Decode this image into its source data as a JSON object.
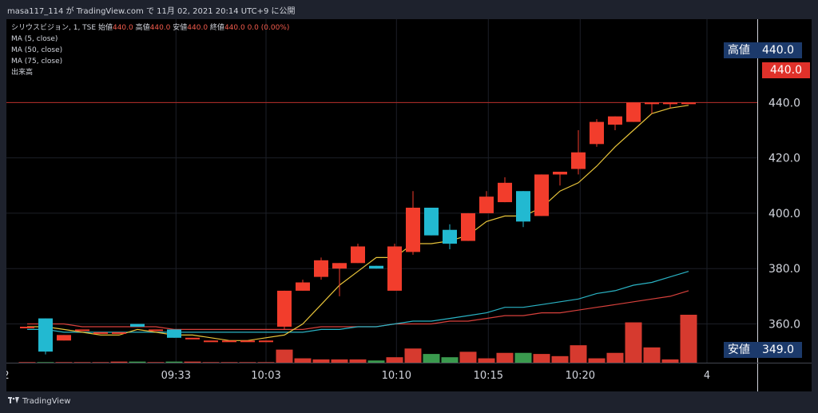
{
  "header": {
    "caption": "masa117_114 が TradingView.com で 11月 02, 2021 20:14 UTC+9 に公開"
  },
  "legend": {
    "symbol": "シリウスビジョン, 1, TSE",
    "ohlc": [
      {
        "label": "始値",
        "value": "440.0"
      },
      {
        "label": "高値",
        "value": "440.0"
      },
      {
        "label": "安値",
        "value": "440.0"
      },
      {
        "label": "終値",
        "value": "440.0"
      }
    ],
    "change": "0.0 (0.00%)",
    "indicators": [
      "MA (5, close)",
      "MA (50, close)",
      "MA (75, close)",
      "出来高"
    ]
  },
  "price_tags": {
    "high": {
      "label": "高値",
      "value": "440.0"
    },
    "last": {
      "value": "440.0"
    },
    "low": {
      "label": "安値",
      "value": "349.0"
    }
  },
  "footer": {
    "brand": "TradingView"
  },
  "colors": {
    "up": "#f23d2c",
    "down": "#22b9d1",
    "vol_up": "#d63a2f",
    "vol_down": "#3a9a4e",
    "ma5": "#e8c43a",
    "ma50": "#2ab3c4",
    "ma75": "#d8413c",
    "tag_bg": "#1c3a6b",
    "last_bg": "#e0312a"
  },
  "chart_data": {
    "type": "candlestick",
    "price_axis": {
      "ticks": [
        360.0,
        380.0,
        400.0,
        420.0,
        440.0
      ],
      "labels": [
        "360.0",
        "380.0",
        "400.0",
        "420.0",
        "440.0"
      ],
      "range": [
        346,
        458
      ]
    },
    "time_axis_labels": [
      {
        "label": "2",
        "slot": -1.15
      },
      {
        "label": "09:33",
        "slot": 8.1
      },
      {
        "label": "10:03",
        "slot": 13.0
      },
      {
        "label": "10:10",
        "slot": 20.1
      },
      {
        "label": "10:15",
        "slot": 25.1
      },
      {
        "label": "10:20",
        "slot": 30.1
      },
      {
        "label": "4",
        "slot": 37.0
      }
    ],
    "candles": [
      {
        "o": 359,
        "h": 359,
        "l": 359,
        "c": 359,
        "dir": "flat"
      },
      {
        "o": 362,
        "h": 362,
        "l": 349,
        "c": 350,
        "dir": "down"
      },
      {
        "o": 354,
        "h": 356,
        "l": 354,
        "c": 356,
        "dir": "up"
      },
      {
        "o": 358,
        "h": 358,
        "l": 358,
        "c": 358,
        "dir": "flat"
      },
      {
        "o": 357,
        "h": 357,
        "l": 357,
        "c": 357,
        "dir": "flat"
      },
      {
        "o": 357,
        "h": 357,
        "l": 357,
        "c": 357,
        "dir": "flat"
      },
      {
        "o": 360,
        "h": 360,
        "l": 359,
        "c": 359,
        "dir": "down"
      },
      {
        "o": 358,
        "h": 358,
        "l": 358,
        "c": 358,
        "dir": "flat"
      },
      {
        "o": 358,
        "h": 358,
        "l": 355,
        "c": 355,
        "dir": "down"
      },
      {
        "o": 355,
        "h": 355,
        "l": 355,
        "c": 355,
        "dir": "flat"
      },
      {
        "o": 354,
        "h": 354,
        "l": 354,
        "c": 354,
        "dir": "flat"
      },
      {
        "o": 354,
        "h": 354,
        "l": 354,
        "c": 354,
        "dir": "flat"
      },
      {
        "o": 354,
        "h": 354,
        "l": 354,
        "c": 354,
        "dir": "flat"
      },
      {
        "o": 354,
        "h": 354,
        "l": 354,
        "c": 354,
        "dir": "flat"
      },
      {
        "o": 359,
        "h": 372,
        "l": 358,
        "c": 372,
        "dir": "up"
      },
      {
        "o": 372,
        "h": 376,
        "l": 372,
        "c": 375,
        "dir": "up"
      },
      {
        "o": 377,
        "h": 384,
        "l": 376,
        "c": 383,
        "dir": "up"
      },
      {
        "o": 380,
        "h": 382,
        "l": 370,
        "c": 382,
        "dir": "up"
      },
      {
        "o": 382,
        "h": 389,
        "l": 382,
        "c": 388,
        "dir": "up"
      },
      {
        "o": 381,
        "h": 381,
        "l": 380,
        "c": 380,
        "dir": "down"
      },
      {
        "o": 372,
        "h": 389,
        "l": 372,
        "c": 388,
        "dir": "up"
      },
      {
        "o": 386,
        "h": 408,
        "l": 385,
        "c": 402,
        "dir": "up"
      },
      {
        "o": 402,
        "h": 402,
        "l": 392,
        "c": 392,
        "dir": "down"
      },
      {
        "o": 394,
        "h": 396,
        "l": 387,
        "c": 389,
        "dir": "down"
      },
      {
        "o": 390,
        "h": 400,
        "l": 390,
        "c": 400,
        "dir": "up"
      },
      {
        "o": 400,
        "h": 408,
        "l": 400,
        "c": 406,
        "dir": "up"
      },
      {
        "o": 404,
        "h": 413,
        "l": 404,
        "c": 411,
        "dir": "up"
      },
      {
        "o": 408,
        "h": 408,
        "l": 395,
        "c": 397,
        "dir": "down"
      },
      {
        "o": 399,
        "h": 414,
        "l": 399,
        "c": 414,
        "dir": "up"
      },
      {
        "o": 414,
        "h": 415,
        "l": 410,
        "c": 415,
        "dir": "up"
      },
      {
        "o": 416,
        "h": 430,
        "l": 414,
        "c": 422,
        "dir": "up"
      },
      {
        "o": 425,
        "h": 434,
        "l": 424,
        "c": 433,
        "dir": "up"
      },
      {
        "o": 432,
        "h": 435,
        "l": 430,
        "c": 435,
        "dir": "up"
      },
      {
        "o": 433,
        "h": 440,
        "l": 433,
        "c": 440,
        "dir": "up"
      },
      {
        "o": 440,
        "h": 440,
        "l": 436,
        "c": 440,
        "dir": "flat"
      },
      {
        "o": 440,
        "h": 440,
        "l": 438,
        "c": 440,
        "dir": "flat"
      },
      {
        "o": 440,
        "h": 440,
        "l": 440,
        "c": 440,
        "dir": "flat"
      }
    ],
    "ma5": [
      359,
      359,
      358,
      357,
      356,
      356,
      358,
      357,
      356,
      356,
      355,
      354,
      354,
      355,
      356,
      360,
      367,
      374,
      379,
      384,
      384,
      389,
      389,
      390,
      392,
      397,
      399,
      399,
      402,
      408,
      411,
      417,
      424,
      430,
      436,
      438,
      439
    ],
    "ma50": [
      358,
      358,
      357,
      357,
      357,
      357,
      357,
      357,
      357,
      357,
      357,
      357,
      357,
      357,
      357,
      357,
      358,
      358,
      359,
      359,
      360,
      361,
      361,
      362,
      363,
      364,
      366,
      366,
      367,
      368,
      369,
      371,
      372,
      374,
      375,
      377,
      379
    ],
    "ma75": [
      360,
      360,
      360,
      359,
      359,
      359,
      359,
      359,
      358,
      358,
      358,
      358,
      358,
      358,
      358,
      358,
      359,
      359,
      359,
      359,
      360,
      360,
      360,
      361,
      361,
      362,
      363,
      363,
      364,
      364,
      365,
      366,
      367,
      368,
      369,
      370,
      372
    ],
    "volume": [
      0.5,
      0.5,
      0.5,
      0.5,
      0.5,
      1,
      1,
      0.5,
      1,
      1,
      0.5,
      0.5,
      0.5,
      0.5,
      12,
      4,
      3,
      3,
      3,
      2,
      5,
      13,
      8,
      5,
      10,
      4,
      9,
      9,
      8,
      6,
      16,
      4,
      9,
      37,
      14,
      3,
      44
    ]
  }
}
